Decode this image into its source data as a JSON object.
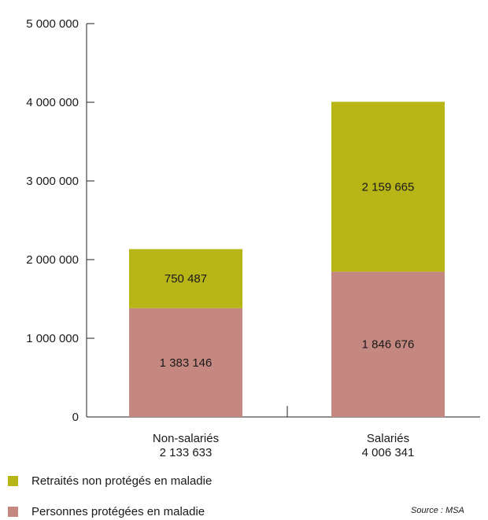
{
  "chart_data": {
    "type": "bar",
    "stacked": true,
    "ylim": [
      0,
      5000000
    ],
    "yticks": [
      {
        "value": 0,
        "label": "0"
      },
      {
        "value": 1000000,
        "label": "1 000 000"
      },
      {
        "value": 2000000,
        "label": "2 000 000"
      },
      {
        "value": 3000000,
        "label": "3 000 000"
      },
      {
        "value": 4000000,
        "label": "4 000 000"
      },
      {
        "value": 5000000,
        "label": "5 000 000"
      }
    ],
    "categories": [
      "Non-salariés",
      "Salariés"
    ],
    "totals": [
      "2 133 633",
      "4 006 341"
    ],
    "series": [
      {
        "name": "Personnes protégées en maladie",
        "color": "#c48880",
        "values": [
          1383146,
          1846676
        ],
        "labels": [
          "1 383 146",
          "1 846 676"
        ]
      },
      {
        "name": "Retraités non protégés en maladie",
        "color": "#b8b517",
        "values": [
          750487,
          2159665
        ],
        "labels": [
          "750 487",
          "2 159 665"
        ]
      }
    ],
    "legend_position": "bottom-left",
    "grid": false
  },
  "source": "Source : MSA"
}
